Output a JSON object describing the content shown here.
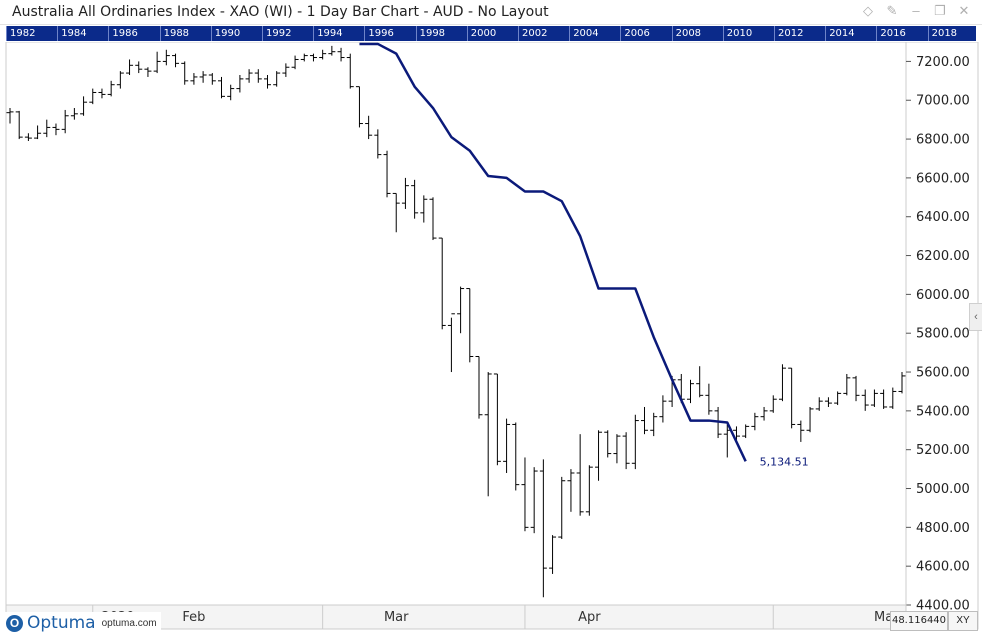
{
  "window": {
    "title": "Australia All Ordinaries Index - XAO (WI) - 1 Day Bar Chart - AUD - No Layout",
    "icons": [
      "diamond-icon",
      "pin-icon",
      "minimize-icon",
      "restore-icon",
      "close-icon"
    ]
  },
  "timeline": {
    "years": [
      "1982",
      "1984",
      "1986",
      "1988",
      "1990",
      "1992",
      "1994",
      "1996",
      "1998",
      "2000",
      "2002",
      "2004",
      "2006",
      "2008",
      "2010",
      "2012",
      "2014",
      "2016",
      "2018",
      "20"
    ],
    "highlight_start_label": "1996"
  },
  "footer": {
    "brand": "Optuma",
    "url": "optuma.com",
    "readout": "48.116440",
    "xy_label": "XY"
  },
  "colors": {
    "timeline_bg": "#0b2a8a",
    "bars": "#000000",
    "line": "#0b1a7a",
    "grid_border": "#cccccc"
  },
  "chart_data": {
    "type": "bar",
    "title": "Australia All Ordinaries Index - XAO (WI) - 1 Day Bar Chart - AUD - No Layout",
    "y_axis": {
      "position": "right",
      "ticks": [
        "7200.00",
        "7000.00",
        "6800.00",
        "6600.00",
        "6400.00",
        "6200.00",
        "6000.00",
        "5800.00",
        "5600.00",
        "5400.00",
        "5200.00",
        "5000.00",
        "4800.00",
        "4600.00",
        "4400.00"
      ],
      "ylim": [
        4400,
        7300
      ]
    },
    "x_axis": {
      "labels": [
        "2020",
        "Feb",
        "Mar",
        "Apr",
        "Ma"
      ]
    },
    "grid": false,
    "series": [
      {
        "style": "ohlc-bars",
        "bars": [
          [
            6936,
            6960,
            6880,
            6940
          ],
          [
            6940,
            6945,
            6800,
            6810
          ],
          [
            6810,
            6830,
            6790,
            6805
          ],
          [
            6805,
            6870,
            6800,
            6830
          ],
          [
            6830,
            6900,
            6810,
            6860
          ],
          [
            6860,
            6880,
            6820,
            6850
          ],
          [
            6850,
            6950,
            6830,
            6920
          ],
          [
            6920,
            6960,
            6900,
            6930
          ],
          [
            6930,
            7020,
            6920,
            6990
          ],
          [
            6990,
            7060,
            6980,
            7040
          ],
          [
            7040,
            7060,
            7010,
            7030
          ],
          [
            7030,
            7100,
            7020,
            7080
          ],
          [
            7080,
            7150,
            7060,
            7140
          ],
          [
            7140,
            7210,
            7130,
            7180
          ],
          [
            7180,
            7200,
            7140,
            7160
          ],
          [
            7160,
            7170,
            7120,
            7150
          ],
          [
            7150,
            7250,
            7140,
            7200
          ],
          [
            7200,
            7260,
            7180,
            7230
          ],
          [
            7230,
            7240,
            7170,
            7190
          ],
          [
            7190,
            7200,
            7080,
            7100
          ],
          [
            7100,
            7140,
            7080,
            7120
          ],
          [
            7120,
            7150,
            7090,
            7130
          ],
          [
            7130,
            7140,
            7080,
            7100
          ],
          [
            7100,
            7120,
            7010,
            7020
          ],
          [
            7020,
            7080,
            7000,
            7060
          ],
          [
            7060,
            7130,
            7040,
            7110
          ],
          [
            7110,
            7160,
            7090,
            7140
          ],
          [
            7140,
            7160,
            7090,
            7110
          ],
          [
            7110,
            7130,
            7060,
            7080
          ],
          [
            7080,
            7150,
            7070,
            7140
          ],
          [
            7140,
            7190,
            7120,
            7170
          ],
          [
            7170,
            7230,
            7160,
            7210
          ],
          [
            7210,
            7240,
            7200,
            7230
          ],
          [
            7230,
            7240,
            7200,
            7220
          ],
          [
            7220,
            7260,
            7210,
            7240
          ],
          [
            7240,
            7280,
            7230,
            7250
          ],
          [
            7250,
            7270,
            7200,
            7220
          ],
          [
            7220,
            7240,
            7060,
            7070
          ],
          [
            7070,
            7070,
            6860,
            6880
          ],
          [
            6880,
            6920,
            6800,
            6820
          ],
          [
            6820,
            6850,
            6700,
            6720
          ],
          [
            6720,
            6740,
            6500,
            6520
          ],
          [
            6520,
            6520,
            6320,
            6470
          ],
          [
            6470,
            6600,
            6440,
            6560
          ],
          [
            6560,
            6590,
            6390,
            6420
          ],
          [
            6420,
            6510,
            6370,
            6490
          ],
          [
            6490,
            6500,
            6280,
            6290
          ],
          [
            6290,
            6290,
            5820,
            5840
          ],
          [
            5840,
            5880,
            5600,
            5900
          ],
          [
            5900,
            6040,
            5800,
            6030
          ],
          [
            6030,
            6030,
            5650,
            5680
          ],
          [
            5680,
            5680,
            5360,
            5380
          ],
          [
            5380,
            5600,
            4960,
            5590
          ],
          [
            5590,
            5590,
            5120,
            5140
          ],
          [
            5140,
            5360,
            5080,
            5330
          ],
          [
            5330,
            5340,
            4990,
            5020
          ],
          [
            5020,
            5160,
            4780,
            4800
          ],
          [
            4800,
            5110,
            4770,
            5090
          ],
          [
            5090,
            5150,
            4440,
            4590
          ],
          [
            4590,
            4760,
            4560,
            4750
          ],
          [
            4750,
            5060,
            4740,
            5040
          ],
          [
            5040,
            5100,
            4880,
            5080
          ],
          [
            5080,
            5280,
            4860,
            4880
          ],
          [
            4880,
            5120,
            4860,
            5110
          ],
          [
            5110,
            5300,
            5040,
            5290
          ],
          [
            5290,
            5300,
            5160,
            5180
          ],
          [
            5180,
            5280,
            5130,
            5270
          ],
          [
            5270,
            5290,
            5100,
            5130
          ],
          [
            5130,
            5380,
            5100,
            5350
          ],
          [
            5350,
            5420,
            5280,
            5300
          ],
          [
            5300,
            5390,
            5270,
            5370
          ],
          [
            5370,
            5480,
            5340,
            5450
          ],
          [
            5450,
            5580,
            5420,
            5560
          ],
          [
            5560,
            5590,
            5440,
            5460
          ],
          [
            5460,
            5560,
            5440,
            5540
          ],
          [
            5540,
            5630,
            5470,
            5480
          ],
          [
            5480,
            5540,
            5380,
            5400
          ],
          [
            5400,
            5420,
            5260,
            5280
          ],
          [
            5280,
            5330,
            5160,
            5300
          ],
          [
            5300,
            5320,
            5250,
            5270
          ],
          [
            5270,
            5330,
            5260,
            5320
          ],
          [
            5320,
            5390,
            5300,
            5370
          ],
          [
            5370,
            5420,
            5350,
            5400
          ],
          [
            5400,
            5480,
            5390,
            5460
          ],
          [
            5460,
            5640,
            5450,
            5620
          ],
          [
            5620,
            5620,
            5310,
            5330
          ],
          [
            5330,
            5350,
            5240,
            5300
          ],
          [
            5300,
            5420,
            5290,
            5410
          ],
          [
            5410,
            5470,
            5400,
            5450
          ],
          [
            5450,
            5470,
            5420,
            5440
          ],
          [
            5440,
            5500,
            5430,
            5490
          ],
          [
            5490,
            5590,
            5480,
            5570
          ],
          [
            5570,
            5580,
            5450,
            5480
          ],
          [
            5480,
            5510,
            5400,
            5430
          ],
          [
            5430,
            5510,
            5420,
            5490
          ],
          [
            5490,
            5510,
            5410,
            5420
          ],
          [
            5420,
            5520,
            5410,
            5500
          ],
          [
            5500,
            5600,
            5490,
            5580
          ]
        ]
      },
      {
        "style": "line",
        "points": [
          [
            38,
            7290
          ],
          [
            40,
            7290
          ],
          [
            42,
            7240
          ],
          [
            44,
            7070
          ],
          [
            46,
            6960
          ],
          [
            48,
            6810
          ],
          [
            50,
            6740
          ],
          [
            52,
            6610
          ],
          [
            54,
            6600
          ],
          [
            56,
            6530
          ],
          [
            58,
            6530
          ],
          [
            60,
            6480
          ],
          [
            62,
            6300
          ],
          [
            64,
            6030
          ],
          [
            66,
            6030
          ],
          [
            68,
            6030
          ],
          [
            70,
            5780
          ],
          [
            72,
            5560
          ],
          [
            74,
            5350
          ],
          [
            76,
            5350
          ],
          [
            78,
            5340
          ],
          [
            80,
            5140
          ]
        ],
        "last_value_label": "5,134.51"
      }
    ]
  }
}
